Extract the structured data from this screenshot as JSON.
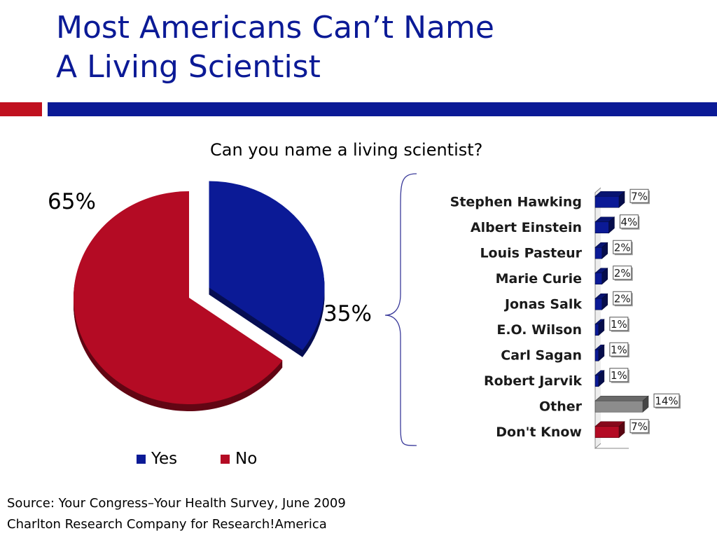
{
  "slide": {
    "title_line1": "Most Americans Can’t Name",
    "title_line2": "A Living Scientist",
    "question": "Can you name a living scientist?",
    "source_line1": "Source: Your Congress–Your Health Survey, June 2009",
    "source_line2": "Charlton Research Company for Research!America"
  },
  "colors": {
    "blue": "#0b1a96",
    "red": "#b40b24",
    "gray": "#8c8c8c",
    "accent_red": "#c0111f"
  },
  "chart_data": [
    {
      "type": "pie",
      "categories": [
        "Yes",
        "No"
      ],
      "values": [
        35,
        65
      ],
      "data_labels": [
        "35%",
        "65%"
      ],
      "legend": [
        "Yes",
        "No"
      ],
      "exploded": "Yes",
      "legend_position": "bottom"
    },
    {
      "type": "bar",
      "orientation": "horizontal",
      "categories": [
        "Stephen Hawking",
        "Albert Einstein",
        "Louis Pasteur",
        "Marie Curie",
        "Jonas Salk",
        "E.O. Wilson",
        "Carl Sagan",
        "Robert Jarvik",
        "Other",
        "Don't Know"
      ],
      "values": [
        7,
        4,
        2,
        2,
        2,
        1,
        1,
        1,
        14,
        7
      ],
      "data_labels": [
        "7%",
        "4%",
        "2%",
        "2%",
        "2%",
        "1%",
        "1%",
        "1%",
        "14%",
        "7%"
      ],
      "bar_colors": [
        "#0b1a96",
        "#0b1a96",
        "#0b1a96",
        "#0b1a96",
        "#0b1a96",
        "#0b1a96",
        "#0b1a96",
        "#0b1a96",
        "#8c8c8c",
        "#b40b24"
      ],
      "xlim": [
        0,
        14
      ]
    }
  ]
}
